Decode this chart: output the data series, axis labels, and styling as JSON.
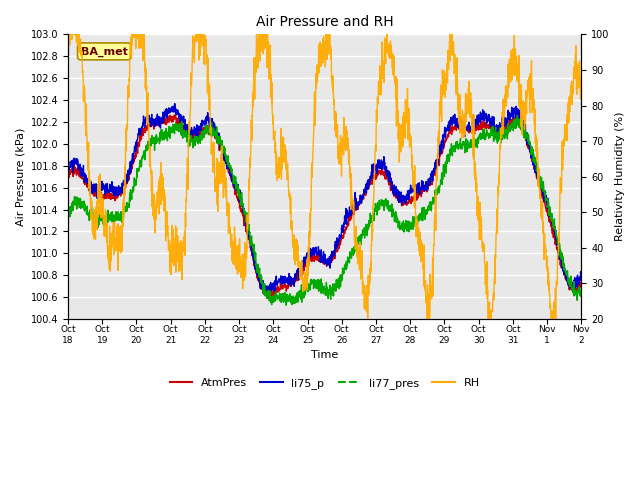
{
  "title": "Air Pressure and RH",
  "xlabel": "Time",
  "ylabel_left": "Air Pressure (kPa)",
  "ylabel_right": "Relativity Humidity (%)",
  "annotation": "BA_met",
  "ylim_left": [
    100.4,
    103.0
  ],
  "ylim_right": [
    20,
    100
  ],
  "yticks_left": [
    100.4,
    100.6,
    100.8,
    101.0,
    101.2,
    101.4,
    101.6,
    101.8,
    102.0,
    102.2,
    102.4,
    102.6,
    102.8,
    103.0
  ],
  "yticks_right": [
    20,
    30,
    40,
    50,
    60,
    70,
    80,
    90,
    100
  ],
  "xtick_labels": [
    "Oct\n18",
    "Oct\n19",
    "Oct\n20",
    "Oct\n21",
    "Oct\n22",
    "Oct\n23",
    "Oct\n24",
    "Oct\n25",
    "Oct\n26",
    "Oct\n27",
    "Oct\n28",
    "Oct\n29",
    "Oct\n30",
    "Oct\n31",
    "Nov\n1",
    "Nov\n2"
  ],
  "colors": {
    "AtmPres": "#cc0000",
    "li75_p": "#0000cc",
    "li77_pres": "#00aa00",
    "RH": "#ffaa00"
  },
  "background_color": "#ffffff",
  "plot_bg_color": "#e8e8e8",
  "grid_color": "#ffffff",
  "linewidth": 1.0,
  "n_points": 2000
}
